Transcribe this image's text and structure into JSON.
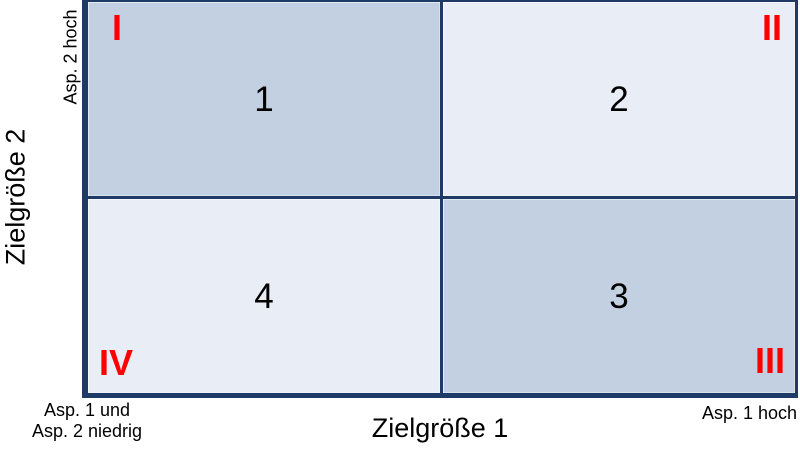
{
  "axes": {
    "y_label": "Zielgröße 2",
    "x_label": "Zielgröße 1",
    "y_high_label": "Asp. 2 hoch",
    "x_high_label": "Asp. 1 hoch",
    "origin_line1": "Asp. 1 und",
    "origin_line2": "Asp. 2 niedrig"
  },
  "matrix": {
    "quadrants": [
      {
        "numeral": "I",
        "number": "1",
        "position": "top-left",
        "tone": "dark"
      },
      {
        "numeral": "II",
        "number": "2",
        "position": "top-right",
        "tone": "light"
      },
      {
        "numeral": "IV",
        "number": "4",
        "position": "bottom-left",
        "tone": "light"
      },
      {
        "numeral": "III",
        "number": "3",
        "position": "bottom-right",
        "tone": "dark"
      }
    ]
  },
  "colors": {
    "border_navy": "#1e3a66",
    "fill_dark": "#c3d0e2",
    "fill_light": "#e9edf5",
    "numeral_red": "#ff0000",
    "text_black": "#000000",
    "background": "#ffffff"
  }
}
